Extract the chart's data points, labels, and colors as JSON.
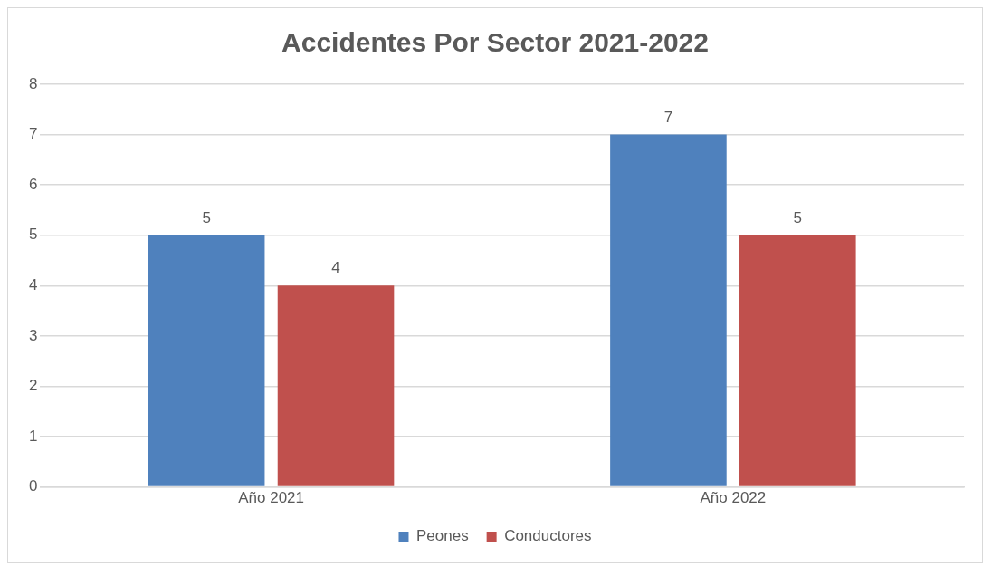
{
  "chart_data": {
    "type": "bar",
    "title": "Accidentes Por Sector 2021-2022",
    "categories": [
      "Año 2021",
      "Año 2022"
    ],
    "series": [
      {
        "name": "Peones",
        "color": "#4f81bd",
        "values": [
          5,
          7
        ]
      },
      {
        "name": "Conductores",
        "color": "#c0504d",
        "values": [
          4,
          5
        ]
      }
    ],
    "ylim": [
      0,
      8
    ],
    "yticks": [
      0,
      1,
      2,
      3,
      4,
      5,
      6,
      7,
      8
    ],
    "grid": "y",
    "legend": "bottom",
    "data_labels": true
  }
}
